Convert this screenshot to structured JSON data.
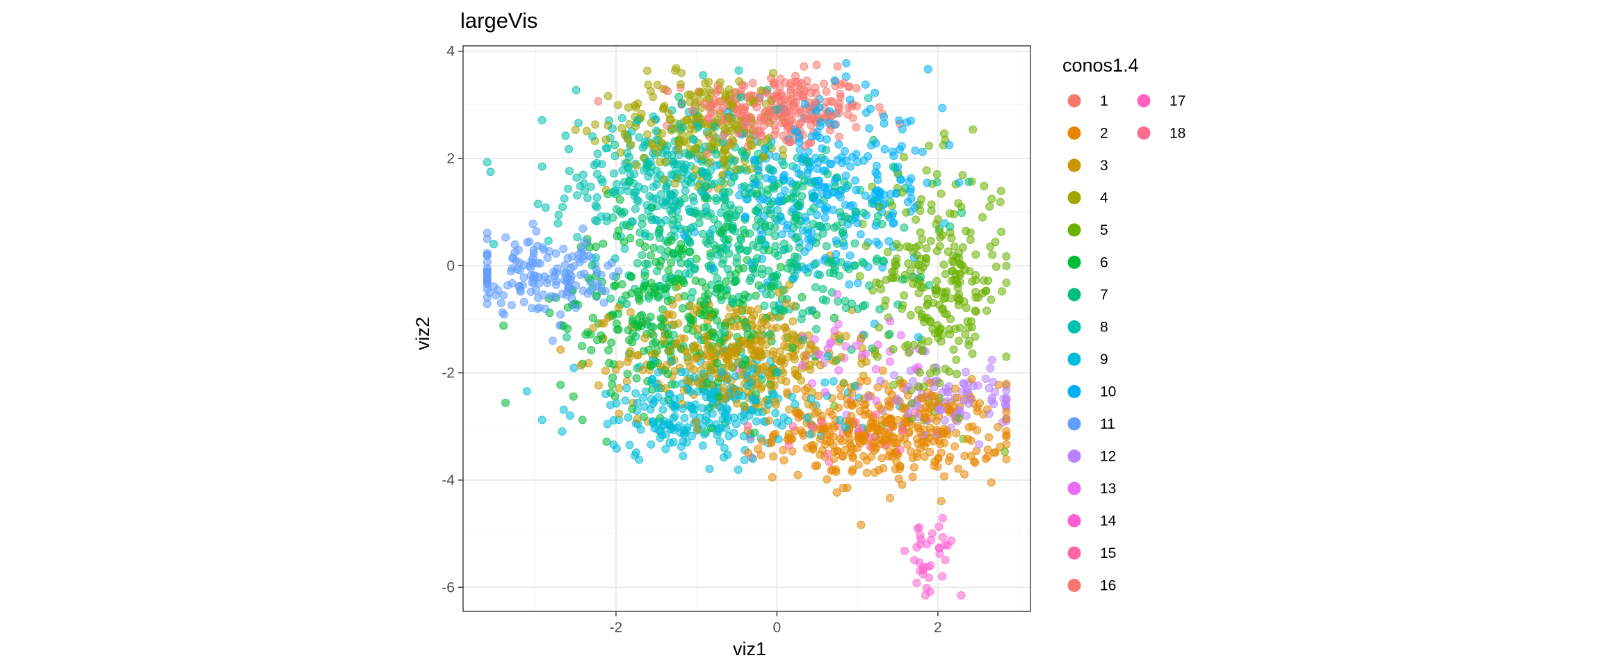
{
  "chart_data": {
    "type": "scatter",
    "title": "largeVis",
    "xlabel": "viz1",
    "ylabel": "viz2",
    "xlim": [
      -3.9,
      3.15
    ],
    "ylim": [
      -6.45,
      4.1
    ],
    "xticks": [
      -2,
      0,
      2
    ],
    "xtick_labels": [
      "-2",
      "0",
      "2"
    ],
    "yticks": [
      4,
      2,
      0,
      -2,
      -4,
      -6
    ],
    "ytick_labels": [
      "4",
      "2",
      "0",
      "-2",
      "-4",
      "-6"
    ],
    "grid": true,
    "legend": {
      "title": "conos1.4",
      "placement": "right",
      "columns": 2,
      "entries": [
        {
          "label": "1",
          "color": "#F8766D"
        },
        {
          "label": "2",
          "color": "#E58700"
        },
        {
          "label": "3",
          "color": "#C99800"
        },
        {
          "label": "4",
          "color": "#A3A500"
        },
        {
          "label": "5",
          "color": "#6BB100"
        },
        {
          "label": "6",
          "color": "#00BA38"
        },
        {
          "label": "7",
          "color": "#00BF7D"
        },
        {
          "label": "8",
          "color": "#00C0AF"
        },
        {
          "label": "9",
          "color": "#00BCD8"
        },
        {
          "label": "10",
          "color": "#00B0F6"
        },
        {
          "label": "11",
          "color": "#619CFF"
        },
        {
          "label": "12",
          "color": "#B983FF"
        },
        {
          "label": "13",
          "color": "#E76BF3"
        },
        {
          "label": "14",
          "color": "#FD61D1"
        },
        {
          "label": "15",
          "color": "#FF67A4"
        },
        {
          "label": "16",
          "color": "#F8766D"
        },
        {
          "label": "17",
          "color": "#FF61C3"
        },
        {
          "label": "18",
          "color": "#FF6C91"
        }
      ]
    },
    "clusters": [
      {
        "name": "1",
        "color": "#F8766D",
        "cx": 0.0,
        "cy": 2.9,
        "sx": 0.55,
        "sy": 0.35,
        "n": 260
      },
      {
        "name": "2",
        "color": "#E58700",
        "cx": 1.4,
        "cy": -3.1,
        "sx": 0.7,
        "sy": 0.45,
        "n": 380
      },
      {
        "name": "3",
        "color": "#C99800",
        "cx": -0.5,
        "cy": -1.7,
        "sx": 0.7,
        "sy": 0.55,
        "n": 360
      },
      {
        "name": "4",
        "color": "#A3A500",
        "cx": -0.9,
        "cy": 2.6,
        "sx": 0.6,
        "sy": 0.5,
        "n": 220
      },
      {
        "name": "5",
        "color": "#6BB100",
        "cx": 2.0,
        "cy": -0.3,
        "sx": 0.4,
        "sy": 1.1,
        "n": 260
      },
      {
        "name": "6",
        "color": "#00BA38",
        "cx": -1.3,
        "cy": -0.9,
        "sx": 0.7,
        "sy": 0.9,
        "n": 300
      },
      {
        "name": "7",
        "color": "#00BF7D",
        "cx": -0.2,
        "cy": 0.4,
        "sx": 0.9,
        "sy": 1.0,
        "n": 420
      },
      {
        "name": "8",
        "color": "#00C0AF",
        "cx": -1.4,
        "cy": 1.6,
        "sx": 0.7,
        "sy": 0.7,
        "n": 280
      },
      {
        "name": "9",
        "color": "#00BCD8",
        "cx": -0.9,
        "cy": -2.7,
        "sx": 0.8,
        "sy": 0.45,
        "n": 260
      },
      {
        "name": "10",
        "color": "#00B0F6",
        "cx": 0.6,
        "cy": 1.4,
        "sx": 0.7,
        "sy": 0.8,
        "n": 300
      },
      {
        "name": "11",
        "color": "#619CFF",
        "cx": -2.9,
        "cy": -0.2,
        "sx": 0.55,
        "sy": 0.35,
        "n": 160
      },
      {
        "name": "12",
        "color": "#B983FF",
        "cx": 2.2,
        "cy": -2.5,
        "sx": 0.4,
        "sy": 0.3,
        "n": 90
      },
      {
        "name": "13",
        "color": "#E76BF3",
        "cx": 0.9,
        "cy": -1.6,
        "sx": 0.5,
        "sy": 0.4,
        "n": 40
      },
      {
        "name": "14",
        "color": "#FD61D1",
        "cx": 1.9,
        "cy": -5.5,
        "sx": 0.15,
        "sy": 0.45,
        "n": 35
      },
      {
        "name": "15",
        "color": "#FF67A4",
        "cx": 0.9,
        "cy": -3.1,
        "sx": 0.5,
        "sy": 0.3,
        "n": 25
      }
    ]
  }
}
